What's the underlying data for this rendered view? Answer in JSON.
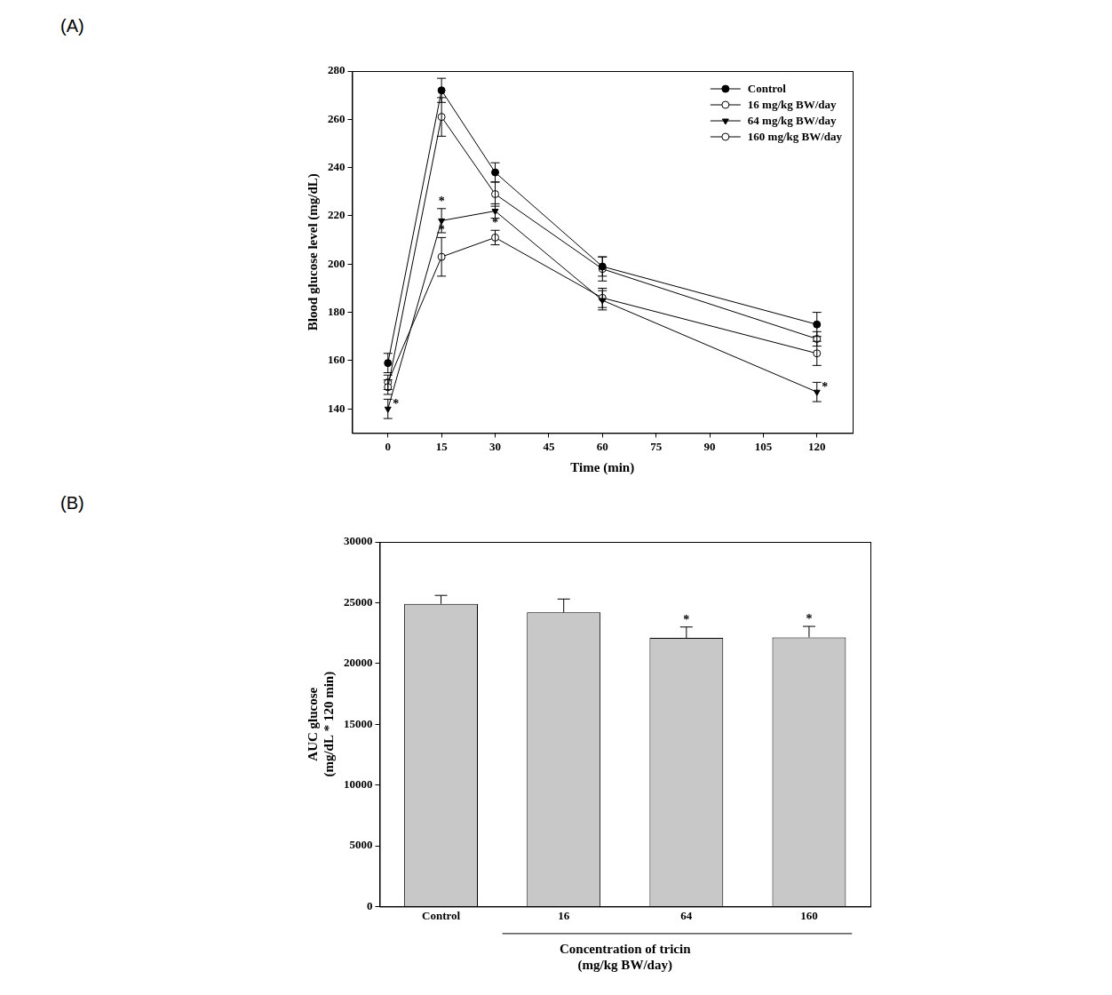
{
  "chart_data": [
    {
      "type": "line",
      "panel": "(A)",
      "xlabel": "Time (min)",
      "ylabel": "Blood glucose level (mg/dL)",
      "x": [
        0,
        15,
        30,
        60,
        120
      ],
      "series": [
        {
          "name": "Control",
          "color": "#000000",
          "marker": "circle",
          "values": [
            159,
            272,
            238,
            199,
            175
          ],
          "errors": [
            4,
            5,
            4,
            4,
            5
          ]
        },
        {
          "name": "16 mg/kg BW/day",
          "color": "#000000",
          "marker": "open_circle",
          "values": [
            149,
            261,
            229,
            198,
            169
          ],
          "errors": [
            3,
            8,
            5,
            5,
            3
          ]
        },
        {
          "name": "64 mg/kg BW/day",
          "color": "#000000",
          "marker": "triangle_down",
          "values": [
            140,
            218,
            222,
            185,
            147
          ],
          "errors": [
            4,
            5,
            3,
            4,
            4
          ]
        },
        {
          "name": "160 mg/kg BW/day",
          "color": "#000000",
          "marker": "open_circle",
          "values": [
            151,
            203,
            211,
            186,
            163
          ],
          "errors": [
            3,
            8,
            3,
            4,
            5
          ]
        }
      ],
      "annotations": [
        {
          "series": "64 mg/kg BW/day",
          "x": 0,
          "text": "*"
        },
        {
          "series": "64 mg/kg BW/day",
          "x": 15,
          "text": "*"
        },
        {
          "series": "64 mg/kg BW/day",
          "x": 120,
          "text": "*"
        },
        {
          "series": "160 mg/kg BW/day",
          "x": 15,
          "text": "*"
        },
        {
          "series": "160 mg/kg BW/day",
          "x": 30,
          "text": "*"
        }
      ],
      "xlim": [
        -10,
        130
      ],
      "xticks": [
        0,
        15,
        30,
        45,
        60,
        75,
        90,
        105,
        120
      ],
      "ylim": [
        130,
        280
      ],
      "yticks": [
        140,
        160,
        180,
        200,
        220,
        240,
        260,
        280
      ],
      "grid": false,
      "legend": "upper right"
    },
    {
      "type": "bar",
      "panel": "(B)",
      "xlabel": [
        "Concentration of tricin",
        "(mg/kg BW/day)"
      ],
      "ylabel": [
        "AUC glucose",
        "(mg/dL * 120 min)"
      ],
      "categories": [
        "Control",
        "16",
        "64",
        "160"
      ],
      "values": [
        24900,
        24200,
        22100,
        22150
      ],
      "errors": [
        700,
        1100,
        900,
        900
      ],
      "color": "#c8c8c8",
      "annotations": [
        {
          "category": "64",
          "text": "*"
        },
        {
          "category": "160",
          "text": "*"
        }
      ],
      "ylim": [
        0,
        30000
      ],
      "yticks": [
        0,
        5000,
        10000,
        15000,
        20000,
        25000,
        30000
      ],
      "grid": false
    }
  ]
}
